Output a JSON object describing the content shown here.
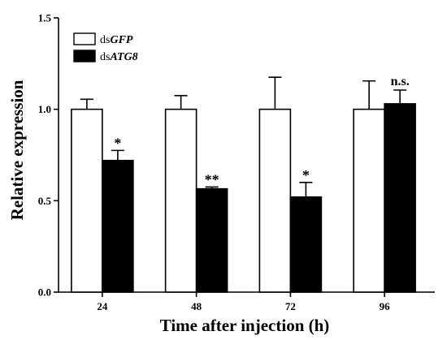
{
  "chart_data": {
    "type": "bar",
    "xlabel": "Time after injection (h)",
    "ylabel": "Relative expression",
    "ylim": [
      0,
      1.5
    ],
    "yticks": [
      "0.0",
      "0.5",
      "1.0",
      "1.5"
    ],
    "categories": [
      "24",
      "48",
      "72",
      "96"
    ],
    "legend_position": "top-left",
    "series": [
      {
        "name_prefix": "ds",
        "name_gene": "GFP",
        "fill": "#ffffff",
        "values": [
          1.0,
          1.0,
          1.0,
          1.0
        ],
        "errors": [
          0.055,
          0.075,
          0.175,
          0.155
        ]
      },
      {
        "name_prefix": "ds",
        "name_gene": "ATG8",
        "fill": "#000000",
        "values": [
          0.72,
          0.565,
          0.52,
          1.03
        ],
        "errors": [
          0.055,
          0.01,
          0.08,
          0.075
        ]
      }
    ],
    "annotations": [
      {
        "category": "24",
        "series": 1,
        "text": "*"
      },
      {
        "category": "48",
        "series": 1,
        "text": "**"
      },
      {
        "category": "72",
        "series": 1,
        "text": "*"
      },
      {
        "category": "96",
        "series": 1,
        "text": "n.s."
      }
    ]
  }
}
